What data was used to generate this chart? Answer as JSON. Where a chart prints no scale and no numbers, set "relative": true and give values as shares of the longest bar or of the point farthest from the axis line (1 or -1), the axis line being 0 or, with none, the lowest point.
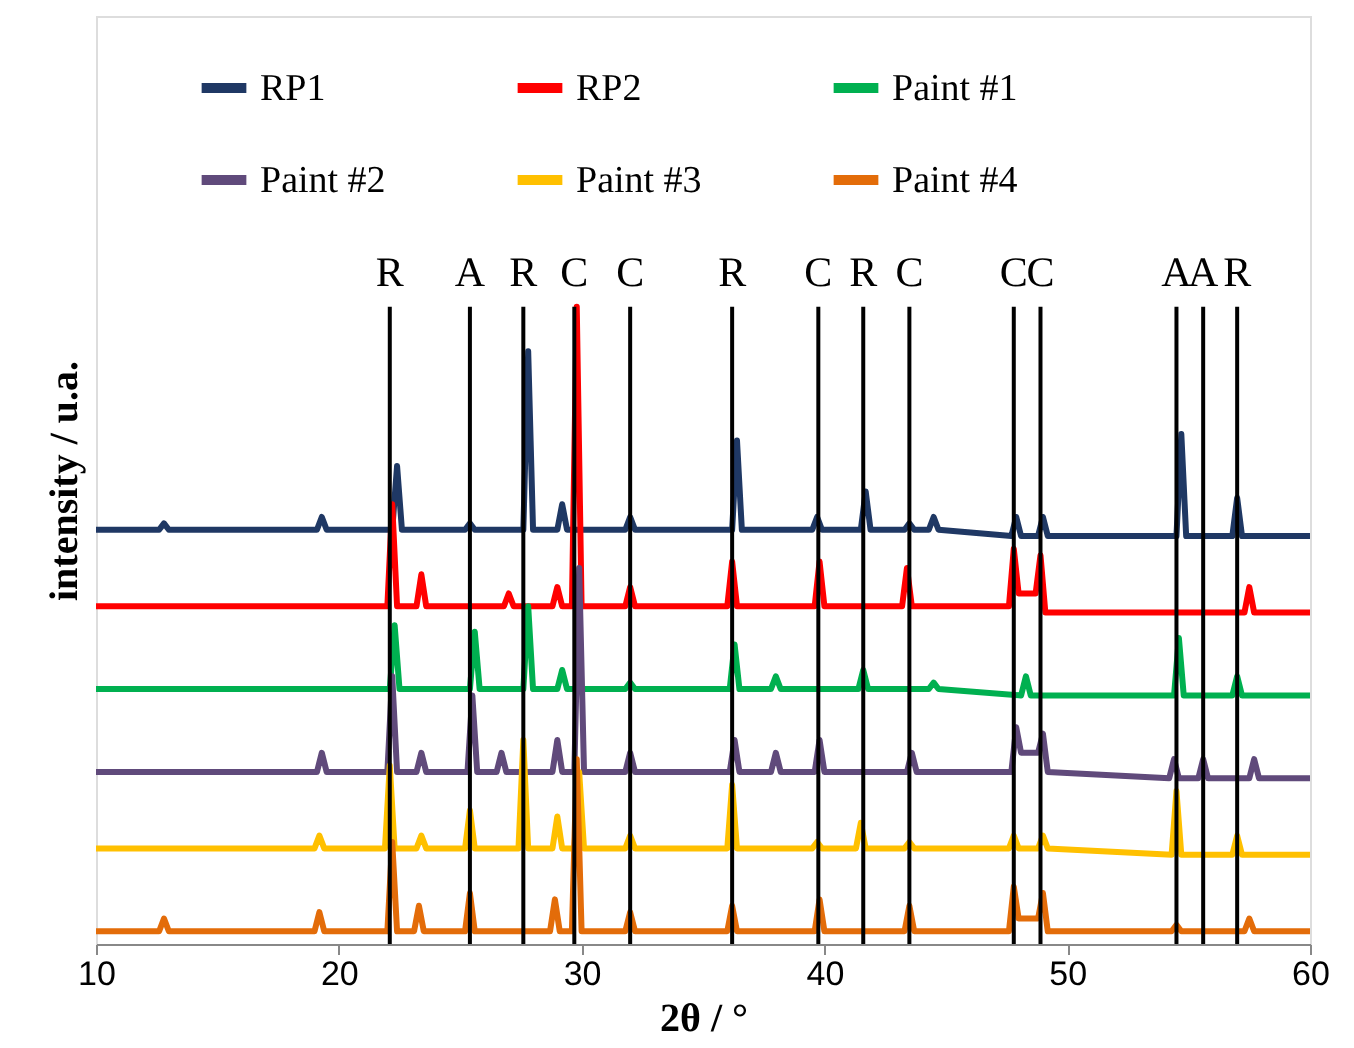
{
  "chart_data": {
    "type": "line",
    "relative": true,
    "xlabel": "2θ / °",
    "ylabel": "intensity / u.a.",
    "xlim": [
      10,
      60
    ],
    "xticks": [
      10,
      20,
      30,
      40,
      50,
      60
    ],
    "grid": false,
    "legend": "top",
    "marker": "none",
    "line_style": "solid",
    "series": [
      {
        "name": "RP1",
        "color": "#1f3864",
        "x": [
          10,
          12.6,
          12.8,
          13.0,
          19.1,
          19.3,
          19.5,
          22.2,
          22.4,
          22.6,
          25.2,
          25.4,
          25.6,
          27.6,
          27.8,
          28.0,
          29.0,
          29.2,
          29.4,
          31.8,
          32.0,
          32.2,
          36.2,
          36.4,
          36.6,
          39.5,
          39.7,
          39.9,
          41.5,
          41.7,
          41.9,
          43.3,
          43.5,
          43.7,
          44.3,
          44.5,
          44.7,
          47.7,
          47.9,
          48.1,
          48.8,
          49.0,
          49.2,
          54.5,
          54.7,
          54.9,
          56.8,
          57.0,
          57.2,
          60
        ],
        "values": [
          0.65,
          0.65,
          0.66,
          0.65,
          0.65,
          0.67,
          0.65,
          0.65,
          0.75,
          0.65,
          0.65,
          0.66,
          0.65,
          0.65,
          0.93,
          0.65,
          0.65,
          0.69,
          0.65,
          0.65,
          0.67,
          0.65,
          0.65,
          0.79,
          0.65,
          0.65,
          0.67,
          0.65,
          0.65,
          0.71,
          0.65,
          0.65,
          0.66,
          0.65,
          0.65,
          0.67,
          0.65,
          0.64,
          0.67,
          0.64,
          0.64,
          0.67,
          0.64,
          0.64,
          0.8,
          0.64,
          0.64,
          0.7,
          0.64,
          0.64
        ]
      },
      {
        "name": "RP2",
        "color": "#ff0000",
        "x": [
          10,
          22.0,
          22.2,
          22.4,
          23.2,
          23.4,
          23.6,
          26.8,
          27.0,
          27.2,
          28.8,
          29.0,
          29.2,
          29.6,
          29.8,
          30.0,
          31.8,
          32.0,
          32.2,
          36.0,
          36.2,
          36.4,
          39.6,
          39.8,
          40.0,
          43.2,
          43.4,
          43.6,
          47.6,
          47.8,
          48.0,
          48.7,
          48.9,
          49.1,
          57.3,
          57.5,
          57.7,
          60
        ],
        "values": [
          0.53,
          0.53,
          0.69,
          0.53,
          0.53,
          0.58,
          0.53,
          0.53,
          0.55,
          0.53,
          0.53,
          0.56,
          0.53,
          0.53,
          1.0,
          0.53,
          0.53,
          0.56,
          0.53,
          0.53,
          0.6,
          0.53,
          0.53,
          0.6,
          0.53,
          0.53,
          0.59,
          0.53,
          0.53,
          0.62,
          0.55,
          0.55,
          0.61,
          0.52,
          0.52,
          0.56,
          0.52,
          0.52
        ]
      },
      {
        "name": "Paint #1",
        "color": "#00b050",
        "x": [
          10,
          22.1,
          22.3,
          22.5,
          25.4,
          25.6,
          25.8,
          27.6,
          27.8,
          28.0,
          29.0,
          29.2,
          29.4,
          31.8,
          32.0,
          32.2,
          36.1,
          36.3,
          36.5,
          37.8,
          38.0,
          38.2,
          41.4,
          41.6,
          41.8,
          44.3,
          44.5,
          44.7,
          48.1,
          48.3,
          48.5,
          54.4,
          54.6,
          54.8,
          56.8,
          57.0,
          57.2,
          60
        ],
        "values": [
          0.4,
          0.4,
          0.5,
          0.4,
          0.4,
          0.49,
          0.4,
          0.4,
          0.53,
          0.4,
          0.4,
          0.43,
          0.4,
          0.4,
          0.41,
          0.4,
          0.4,
          0.47,
          0.4,
          0.4,
          0.42,
          0.4,
          0.4,
          0.43,
          0.4,
          0.4,
          0.41,
          0.4,
          0.39,
          0.42,
          0.39,
          0.39,
          0.48,
          0.39,
          0.39,
          0.42,
          0.39,
          0.39
        ]
      },
      {
        "name": "Paint #2",
        "color": "#604a7b",
        "x": [
          10,
          19.1,
          19.3,
          19.5,
          22.0,
          22.2,
          22.4,
          23.2,
          23.4,
          23.6,
          25.3,
          25.5,
          25.7,
          26.5,
          26.7,
          26.9,
          28.8,
          29.0,
          29.2,
          29.7,
          29.9,
          30.1,
          31.8,
          32.0,
          32.2,
          36.1,
          36.3,
          36.5,
          37.8,
          38.0,
          38.2,
          39.6,
          39.8,
          40.0,
          43.4,
          43.6,
          43.8,
          47.7,
          47.9,
          48.1,
          48.8,
          49.0,
          49.2,
          54.2,
          54.4,
          54.6,
          55.4,
          55.6,
          55.8,
          57.5,
          57.7,
          57.9,
          60
        ],
        "values": [
          0.27,
          0.27,
          0.3,
          0.27,
          0.27,
          0.42,
          0.27,
          0.27,
          0.3,
          0.27,
          0.27,
          0.39,
          0.27,
          0.27,
          0.3,
          0.27,
          0.27,
          0.32,
          0.27,
          0.27,
          0.59,
          0.27,
          0.27,
          0.3,
          0.27,
          0.27,
          0.32,
          0.27,
          0.27,
          0.3,
          0.27,
          0.27,
          0.32,
          0.27,
          0.27,
          0.3,
          0.27,
          0.27,
          0.34,
          0.3,
          0.3,
          0.33,
          0.27,
          0.26,
          0.29,
          0.26,
          0.26,
          0.29,
          0.26,
          0.26,
          0.29,
          0.26,
          0.26
        ]
      },
      {
        "name": "Paint #3",
        "color": "#ffc000",
        "x": [
          10,
          19.0,
          19.2,
          19.4,
          21.9,
          22.1,
          22.3,
          23.2,
          23.4,
          23.6,
          25.2,
          25.4,
          25.6,
          27.4,
          27.6,
          27.8,
          28.8,
          29.0,
          29.2,
          29.7,
          29.9,
          30.1,
          31.8,
          32.0,
          32.2,
          36.0,
          36.2,
          36.4,
          39.5,
          39.7,
          39.9,
          41.3,
          41.5,
          41.7,
          43.3,
          43.5,
          43.7,
          47.6,
          47.8,
          48.0,
          48.8,
          49.0,
          49.2,
          54.3,
          54.5,
          54.7,
          56.8,
          57.0,
          57.2,
          60
        ],
        "values": [
          0.15,
          0.15,
          0.17,
          0.15,
          0.15,
          0.28,
          0.15,
          0.15,
          0.17,
          0.15,
          0.15,
          0.21,
          0.15,
          0.15,
          0.32,
          0.15,
          0.15,
          0.2,
          0.15,
          0.15,
          0.27,
          0.15,
          0.15,
          0.17,
          0.15,
          0.15,
          0.25,
          0.15,
          0.15,
          0.16,
          0.15,
          0.15,
          0.19,
          0.15,
          0.15,
          0.16,
          0.15,
          0.15,
          0.17,
          0.15,
          0.15,
          0.17,
          0.15,
          0.14,
          0.24,
          0.14,
          0.14,
          0.17,
          0.14,
          0.14
        ]
      },
      {
        "name": "Paint #4",
        "color": "#e36c09",
        "x": [
          10,
          12.6,
          12.8,
          13.0,
          19.0,
          19.2,
          19.4,
          22.0,
          22.2,
          22.4,
          23.1,
          23.3,
          23.5,
          25.2,
          25.4,
          25.6,
          28.7,
          28.9,
          29.1,
          29.6,
          29.8,
          30.0,
          31.8,
          32.0,
          32.2,
          36.0,
          36.2,
          36.4,
          39.6,
          39.8,
          40.0,
          43.3,
          43.5,
          43.7,
          47.6,
          47.8,
          48.0,
          48.8,
          49.0,
          49.2,
          54.3,
          54.5,
          54.7,
          57.3,
          57.5,
          57.7,
          60
        ],
        "values": [
          0.02,
          0.02,
          0.04,
          0.02,
          0.02,
          0.05,
          0.02,
          0.02,
          0.16,
          0.02,
          0.02,
          0.06,
          0.02,
          0.02,
          0.08,
          0.02,
          0.02,
          0.07,
          0.02,
          0.02,
          0.29,
          0.02,
          0.02,
          0.05,
          0.02,
          0.02,
          0.06,
          0.02,
          0.02,
          0.07,
          0.02,
          0.02,
          0.06,
          0.02,
          0.02,
          0.09,
          0.04,
          0.04,
          0.08,
          0.02,
          0.02,
          0.03,
          0.02,
          0.02,
          0.04,
          0.02,
          0.02
        ]
      }
    ],
    "ref_lines": [
      {
        "axis": "x",
        "value": 22.1,
        "label": "R",
        "color": "#000000"
      },
      {
        "axis": "x",
        "value": 25.4,
        "label": "A",
        "color": "#000000"
      },
      {
        "axis": "x",
        "value": 27.6,
        "label": "R",
        "color": "#000000"
      },
      {
        "axis": "x",
        "value": 29.7,
        "label": "C",
        "color": "#000000"
      },
      {
        "axis": "x",
        "value": 32.0,
        "label": "C",
        "color": "#000000"
      },
      {
        "axis": "x",
        "value": 36.2,
        "label": "R",
        "color": "#000000"
      },
      {
        "axis": "x",
        "value": 39.75,
        "label": "C",
        "color": "#000000"
      },
      {
        "axis": "x",
        "value": 41.6,
        "label": "R",
        "color": "#000000"
      },
      {
        "axis": "x",
        "value": 43.5,
        "label": "C",
        "color": "#000000"
      },
      {
        "axis": "x",
        "value": 47.8,
        "label": "C",
        "color": "#000000"
      },
      {
        "axis": "x",
        "value": 48.9,
        "label": "C",
        "color": "#000000"
      },
      {
        "axis": "x",
        "value": 54.5,
        "label": "A",
        "color": "#000000"
      },
      {
        "axis": "x",
        "value": 55.6,
        "label": "A",
        "color": "#000000"
      },
      {
        "axis": "x",
        "value": 57.0,
        "label": "R",
        "color": "#000000"
      }
    ]
  }
}
